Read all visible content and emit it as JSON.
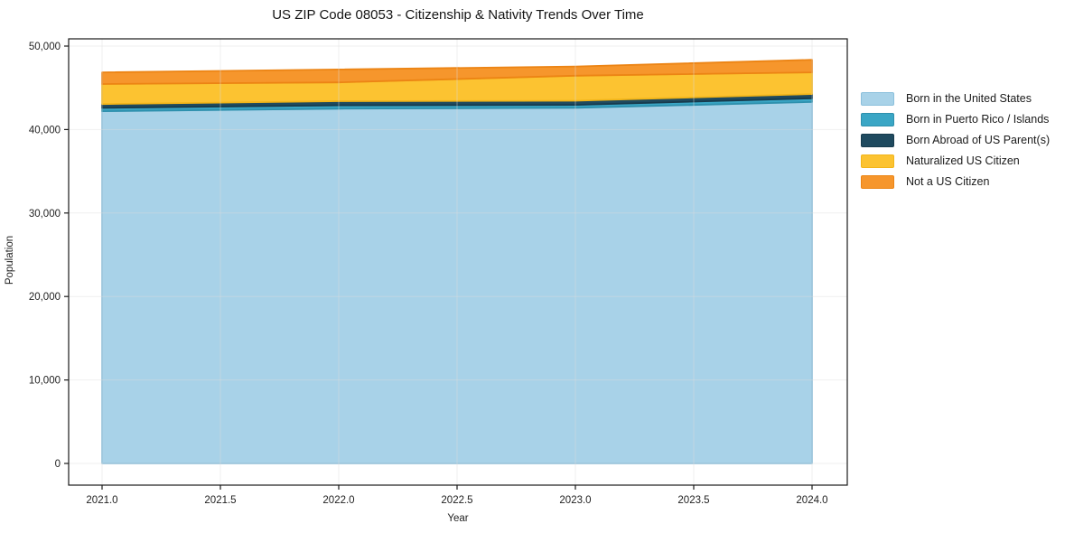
{
  "chart_data": {
    "type": "area",
    "stacked": true,
    "title": "US ZIP Code 08053 - Citizenship & Nativity Trends Over Time",
    "xlabel": "Year",
    "ylabel": "Population",
    "x": [
      2021,
      2022,
      2023,
      2024
    ],
    "x_tick_values": [
      2021.0,
      2021.5,
      2022.0,
      2022.5,
      2023.0,
      2023.5,
      2024.0
    ],
    "x_tick_labels": [
      "2021.0",
      "2021.5",
      "2022.0",
      "2022.5",
      "2023.0",
      "2023.5",
      "2024.0"
    ],
    "y_tick_values": [
      0,
      10000,
      20000,
      30000,
      40000,
      50000
    ],
    "y_tick_labels": [
      "0",
      "10,000",
      "20,000",
      "30,000",
      "40,000",
      "50,000"
    ],
    "ylim": [
      0,
      50000
    ],
    "xlim": [
      2020.86,
      2024.15
    ],
    "grid": true,
    "legend_position": "right",
    "series": [
      {
        "name": "Born in the United States",
        "color": "#a8d2e8",
        "edge_color": "#8bc0dc",
        "values": [
          42200,
          42500,
          42600,
          43300
        ]
      },
      {
        "name": "Born in Puerto Rico / Islands",
        "color": "#3aa6c5",
        "edge_color": "#2e90ad",
        "values": [
          400,
          400,
          350,
          450
        ]
      },
      {
        "name": "Born Abroad of US Parent(s)",
        "color": "#1f4a5f",
        "edge_color": "#173b4d",
        "values": [
          450,
          500,
          500,
          500
        ]
      },
      {
        "name": "Naturalized US Citizen",
        "color": "#fcc331",
        "edge_color": "#f2b519",
        "values": [
          2400,
          2250,
          3000,
          2600
        ]
      },
      {
        "name": "Not a US Citizen",
        "color": "#f6962c",
        "edge_color": "#ec8414",
        "values": [
          1400,
          1550,
          1100,
          1500
        ]
      }
    ],
    "style": {
      "grid_color": "#dcdcdc",
      "axis_color": "#1a1a1a",
      "text_color": "#1f1f1f",
      "background": "#ffffff"
    }
  }
}
